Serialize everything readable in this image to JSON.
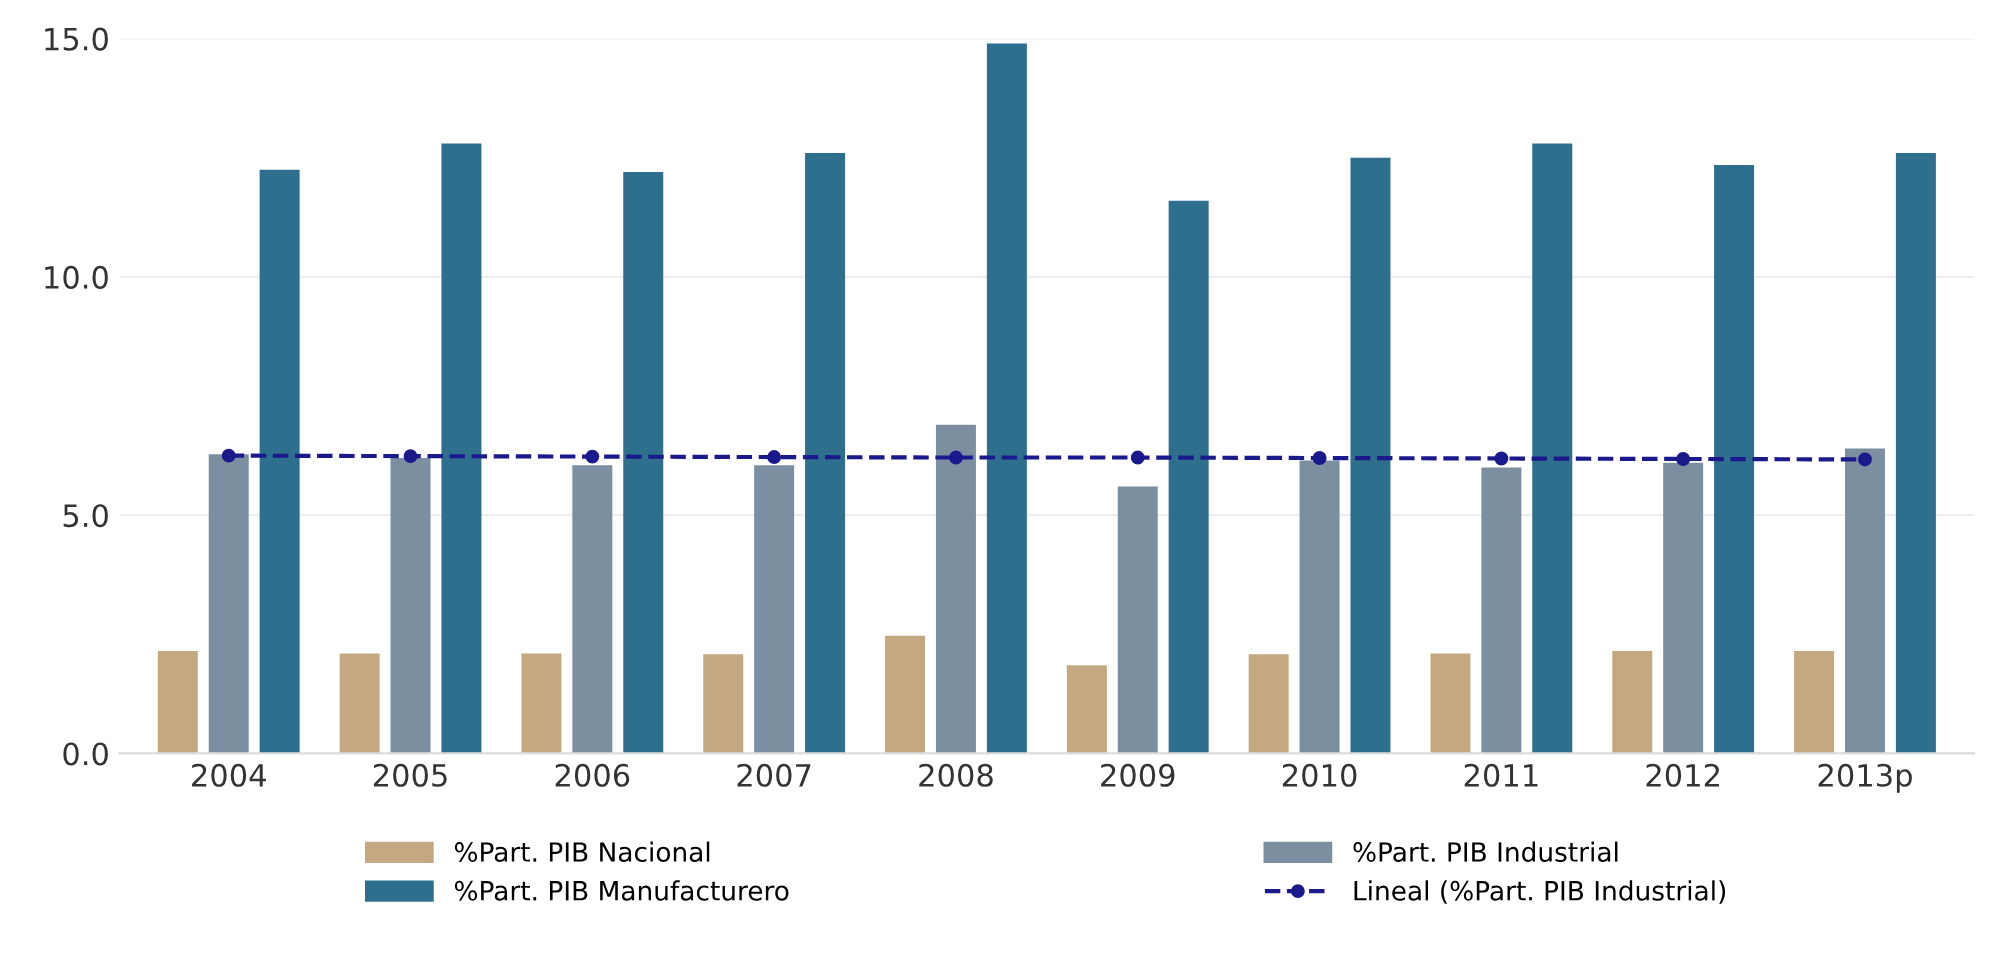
{
  "chart_data": {
    "type": "bar",
    "categories": [
      "2004",
      "2005",
      "2006",
      "2007",
      "2008",
      "2009",
      "2010",
      "2011",
      "2012",
      "2013p"
    ],
    "series": [
      {
        "name": "%Part. PIB Nacional",
        "color": "#c4a882",
        "values": [
          2.15,
          2.1,
          2.1,
          2.08,
          2.47,
          1.85,
          2.08,
          2.1,
          2.15,
          2.15
        ]
      },
      {
        "name": "%Part. PIB Industrial",
        "color": "#7b8fa1",
        "values": [
          6.28,
          6.2,
          6.05,
          6.05,
          6.9,
          5.6,
          6.15,
          6.0,
          6.1,
          6.4
        ]
      },
      {
        "name": "%Part. PIB Manufacturero",
        "color": "#2e6f8e",
        "values": [
          12.25,
          12.8,
          12.2,
          12.6,
          14.9,
          11.6,
          12.5,
          12.8,
          12.35,
          12.6
        ]
      },
      {
        "name": "Lineal (%Part. PIB Industrial)",
        "type": "line",
        "color": "#1a1a8c",
        "values": [
          6.25,
          6.24,
          6.23,
          6.22,
          6.21,
          6.21,
          6.2,
          6.19,
          6.18,
          6.17
        ],
        "marker": "circle",
        "line_style": "dashed"
      }
    ],
    "ylim": [
      0,
      15
    ],
    "yticks": [
      {
        "value": 0,
        "label": "0.0"
      },
      {
        "value": 5,
        "label": "5.0"
      },
      {
        "value": 10,
        "label": "10.0"
      },
      {
        "value": 15,
        "label": "15.0"
      }
    ],
    "grid": "y",
    "legend": "bottom"
  }
}
